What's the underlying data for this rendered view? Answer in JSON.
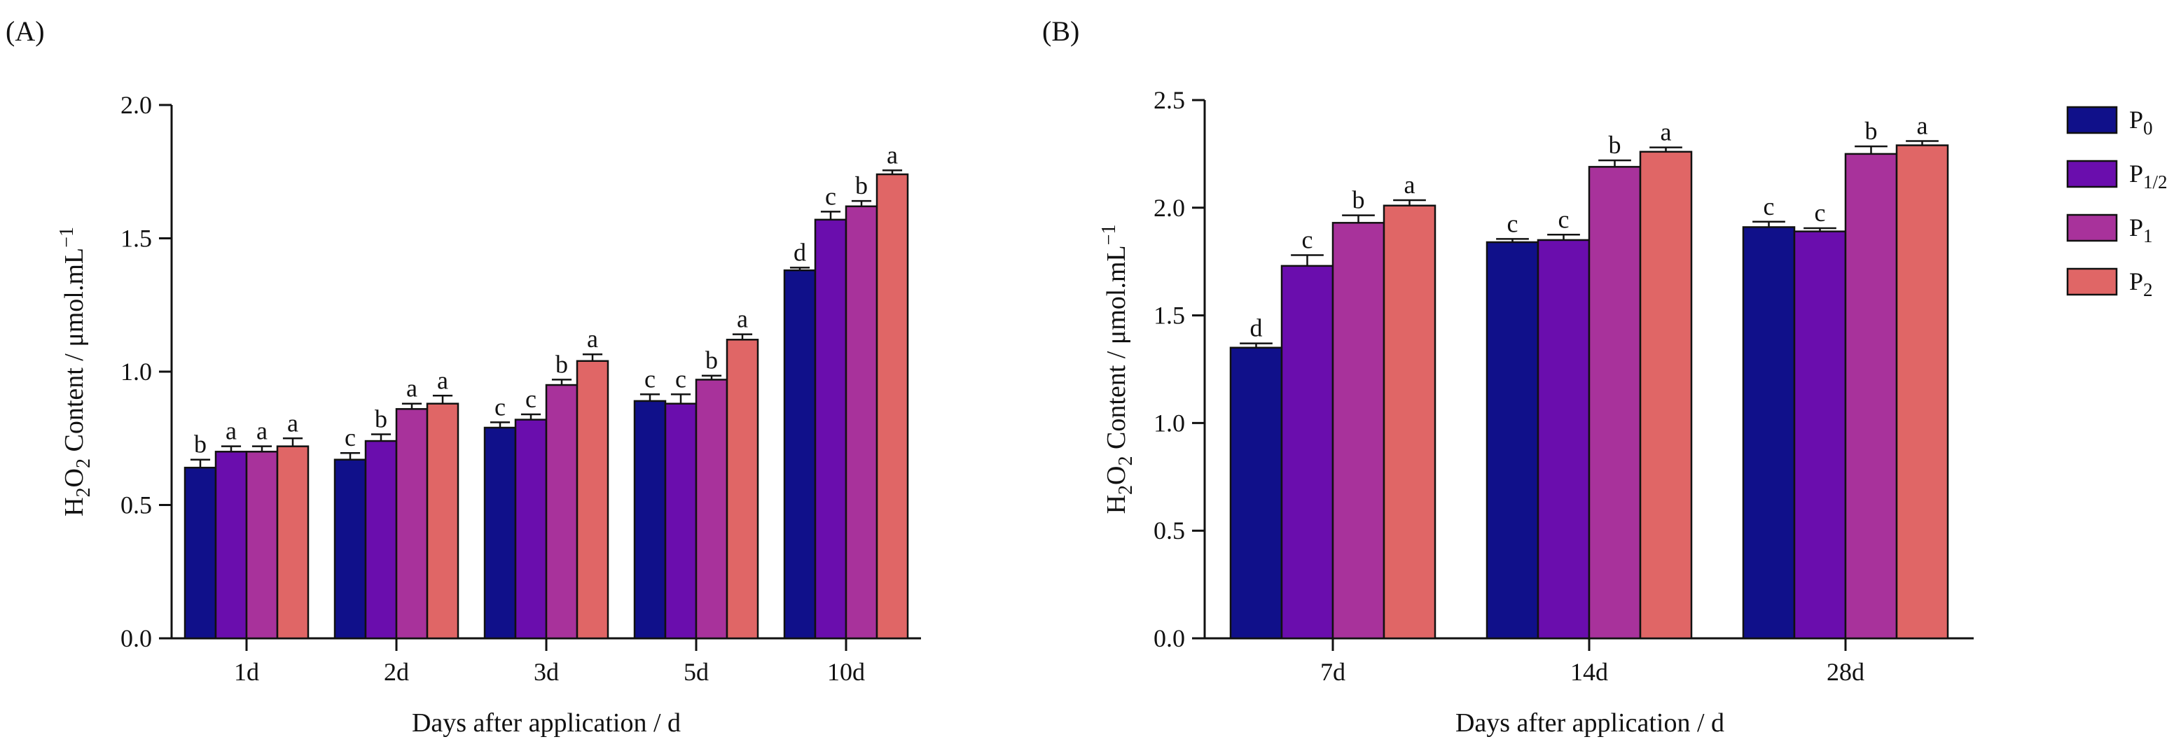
{
  "chart_data": [
    {
      "type": "bar",
      "panel_label": "(A)",
      "categories": [
        "1d",
        "2d",
        "3d",
        "5d",
        "10d"
      ],
      "xlabel": "Days after application  / d",
      "ylabel_parts": {
        "main": "H",
        "sub1": "2",
        "mid": "O",
        "sub2": "2",
        "rest": " Content / μmol.mL",
        "sup": "−1"
      },
      "ylim": [
        0,
        2.0
      ],
      "yticks": [
        "0.0",
        "0.5",
        "1.0",
        "1.5",
        "2.0"
      ],
      "series": [
        {
          "name": "P0",
          "values": [
            0.64,
            0.67,
            0.79,
            0.89,
            1.38
          ],
          "errors": [
            0.03,
            0.025,
            0.02,
            0.025,
            0.01
          ],
          "letters": [
            "b",
            "c",
            "c",
            "c",
            "d"
          ]
        },
        {
          "name": "P1/2",
          "values": [
            0.7,
            0.74,
            0.82,
            0.88,
            1.57
          ],
          "errors": [
            0.02,
            0.025,
            0.02,
            0.035,
            0.03
          ],
          "letters": [
            "a",
            "b",
            "c",
            "c",
            "c"
          ]
        },
        {
          "name": "P1",
          "values": [
            0.7,
            0.86,
            0.95,
            0.97,
            1.62
          ],
          "errors": [
            0.02,
            0.02,
            0.02,
            0.015,
            0.02
          ],
          "letters": [
            "a",
            "a",
            "b",
            "b",
            "b"
          ]
        },
        {
          "name": "P2",
          "values": [
            0.72,
            0.88,
            1.04,
            1.12,
            1.74
          ],
          "errors": [
            0.03,
            0.03,
            0.025,
            0.02,
            0.015
          ],
          "letters": [
            "a",
            "a",
            "a",
            "a",
            "a"
          ]
        }
      ]
    },
    {
      "type": "bar",
      "panel_label": "(B)",
      "categories": [
        "7d",
        "14d",
        "28d"
      ],
      "xlabel": "Days after application  / d",
      "ylabel_parts": {
        "main": "H",
        "sub1": "2",
        "mid": "O",
        "sub2": "2",
        "rest": " Content / μmol.mL",
        "sup": "−1"
      },
      "ylim": [
        0,
        2.5
      ],
      "yticks": [
        "0.0",
        "0.5",
        "1.0",
        "1.5",
        "2.0",
        "2.5"
      ],
      "series": [
        {
          "name": "P0",
          "values": [
            1.35,
            1.84,
            1.91
          ],
          "errors": [
            0.02,
            0.015,
            0.025
          ],
          "letters": [
            "d",
            "c",
            "c"
          ]
        },
        {
          "name": "P1/2",
          "values": [
            1.73,
            1.85,
            1.89
          ],
          "errors": [
            0.05,
            0.025,
            0.015
          ],
          "letters": [
            "c",
            "c",
            "c"
          ]
        },
        {
          "name": "P1",
          "values": [
            1.93,
            2.19,
            2.25
          ],
          "errors": [
            0.035,
            0.03,
            0.035
          ],
          "letters": [
            "b",
            "b",
            "b"
          ]
        },
        {
          "name": "P2",
          "values": [
            2.01,
            2.26,
            2.29
          ],
          "errors": [
            0.025,
            0.02,
            0.02
          ],
          "letters": [
            "a",
            "a",
            "a"
          ]
        }
      ]
    }
  ],
  "legend": [
    {
      "base": "P",
      "sub": "0",
      "color": "#10108a"
    },
    {
      "base": "P",
      "sub": "1/2",
      "color": "#6a0dad"
    },
    {
      "base": "P",
      "sub": "1",
      "color": "#a8329b"
    },
    {
      "base": "P",
      "sub": "2",
      "color": "#e06666"
    }
  ],
  "colors": {
    "P0": "#10108a",
    "P1/2": "#6a0dad",
    "P1": "#a8329b",
    "P2": "#e06666",
    "axis": "#111111"
  }
}
